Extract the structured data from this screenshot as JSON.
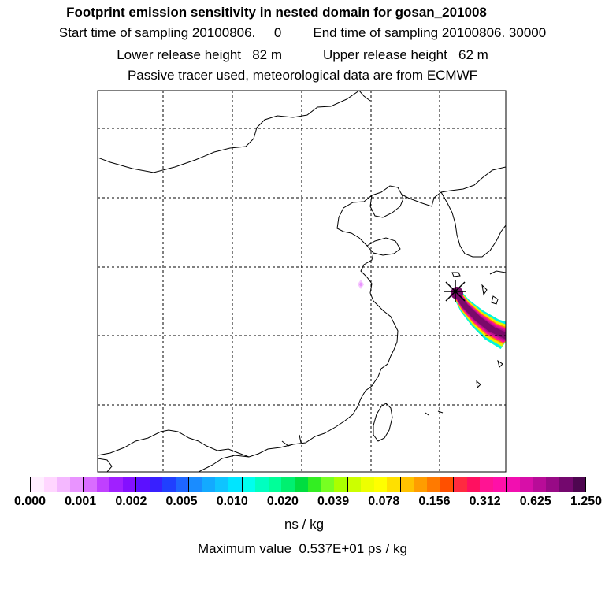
{
  "header": {
    "title": "Footprint emission sensitivity in nested domain for gosan_201008",
    "start_label": "Start time of sampling",
    "start_value": "20100806.     0",
    "end_label": "End time of sampling",
    "end_value": "20100806. 30000",
    "lower_label": "Lower release height",
    "lower_value": "82 m",
    "upper_label": "Upper release height",
    "upper_value": "62 m",
    "tracer_note": "Passive tracer used, meteorological data are from ECMWF"
  },
  "map": {
    "receptor_marker": "star-icon",
    "plume_colors": [
      "#00ffcc",
      "#00e5ff",
      "#ccff00",
      "#ffdd00",
      "#ff8800",
      "#ff1493",
      "#e0109a",
      "#b0118a",
      "#7a0a6a"
    ],
    "coast_color": "#000000"
  },
  "colorbar": {
    "segments": [
      "#ffeeff",
      "#ffd6ff",
      "#f4b8ff",
      "#e994ff",
      "#d96cff",
      "#c040ff",
      "#a020ff",
      "#8410ff",
      "#5c10ff",
      "#3820ff",
      "#2040ff",
      "#1e66ff",
      "#1a8cff",
      "#13aaff",
      "#0fc4ff",
      "#00e5ff",
      "#00ffee",
      "#00ffc0",
      "#00ff99",
      "#00f070",
      "#00dd40",
      "#33ee22",
      "#77ff22",
      "#aaff00",
      "#ccff00",
      "#eeff00",
      "#ffff00",
      "#ffe000",
      "#ffc200",
      "#ff9d00",
      "#ff7a00",
      "#ff5000",
      "#ff2a40",
      "#ff1060",
      "#ff1493",
      "#ff10a8",
      "#f20fb0",
      "#d70fa8",
      "#b80c98",
      "#980a86",
      "#74086e",
      "#4e0650"
    ],
    "ticks": [
      "0.000",
      "0.001",
      "0.002",
      "0.005",
      "0.010",
      "0.020",
      "0.039",
      "0.078",
      "0.156",
      "0.312",
      "0.625",
      "1.250"
    ],
    "unit": "ns / kg"
  },
  "footer": {
    "max_label": "Maximum value",
    "max_value": "0.537E+01 ps / kg"
  }
}
